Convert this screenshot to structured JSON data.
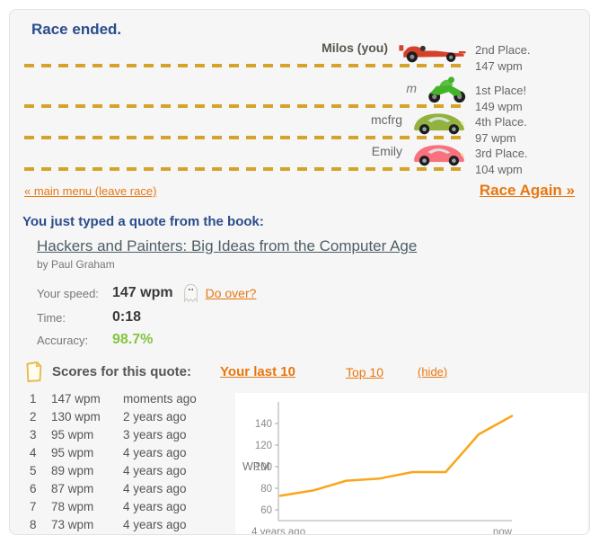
{
  "colors": {
    "heading_blue": "#2a4d8c",
    "link_orange": "#e8770f",
    "track_dash": "#d5a32a",
    "accuracy_green": "#84c441",
    "panel_background": "#f6f6f6",
    "chart_line": "#faa61a"
  },
  "race": {
    "status": "Race ended.",
    "racers": [
      {
        "name": "Milos (you)",
        "vehicle": "red-race-car",
        "vehicle_color": "#d6412b",
        "place": "2nd Place.",
        "wpm": "147 wpm"
      },
      {
        "name": "m",
        "vehicle": "green-motorcycle",
        "vehicle_color": "#43b327",
        "place": "1st Place!",
        "wpm": "149 wpm"
      },
      {
        "name": "mcfrg",
        "vehicle": "green-beetle-car",
        "vehicle_color": "#93b23d",
        "place": "4th Place.",
        "wpm": "97 wpm"
      },
      {
        "name": "Emily",
        "vehicle": "pink-beetle-car",
        "vehicle_color": "#f8717d",
        "place": "3rd Place.",
        "wpm": "104 wpm"
      }
    ],
    "main_menu_link": "« main menu (leave race)",
    "race_again_link": "Race Again »"
  },
  "quote": {
    "heading": "You just typed a quote from the book:",
    "book_title": "Hackers and Painters: Big Ideas from the Computer Age",
    "book_author": "by Paul Graham",
    "stats": {
      "speed_label": "Your speed:",
      "speed_value": "147 wpm",
      "do_over_link": "Do over?",
      "time_label": "Time:",
      "time_value": "0:18",
      "accuracy_label": "Accuracy:",
      "accuracy_value": "98.7%"
    }
  },
  "scores": {
    "heading": "Scores for this quote:",
    "tab_your_last_10": "Your last 10",
    "tab_top_10": "Top 10",
    "hide_link": "(hide)",
    "rows": [
      {
        "rank": "1",
        "wpm": "147 wpm",
        "when": "moments ago"
      },
      {
        "rank": "2",
        "wpm": "130 wpm",
        "when": "2 years ago"
      },
      {
        "rank": "3",
        "wpm": "95 wpm",
        "when": "3 years ago"
      },
      {
        "rank": "4",
        "wpm": "95 wpm",
        "when": "4 years ago"
      },
      {
        "rank": "5",
        "wpm": "89 wpm",
        "when": "4 years ago"
      },
      {
        "rank": "6",
        "wpm": "87 wpm",
        "when": "4 years ago"
      },
      {
        "rank": "7",
        "wpm": "78 wpm",
        "when": "4 years ago"
      },
      {
        "rank": "8",
        "wpm": "73 wpm",
        "when": "4 years ago"
      }
    ]
  },
  "chart_data": {
    "type": "line",
    "x": [
      0,
      1,
      2,
      3,
      4,
      5,
      6,
      7
    ],
    "values": [
      73,
      78,
      87,
      89,
      95,
      95,
      130,
      147
    ],
    "title": "",
    "xlabel": "",
    "ylabel": "WPM",
    "x_axis_labels": [
      "4 years ago",
      "now"
    ],
    "y_ticks": [
      60,
      80,
      100,
      120,
      140
    ],
    "ylim": [
      50,
      160
    ],
    "grid": false,
    "legend": "none",
    "line_color": "#faa61a"
  }
}
